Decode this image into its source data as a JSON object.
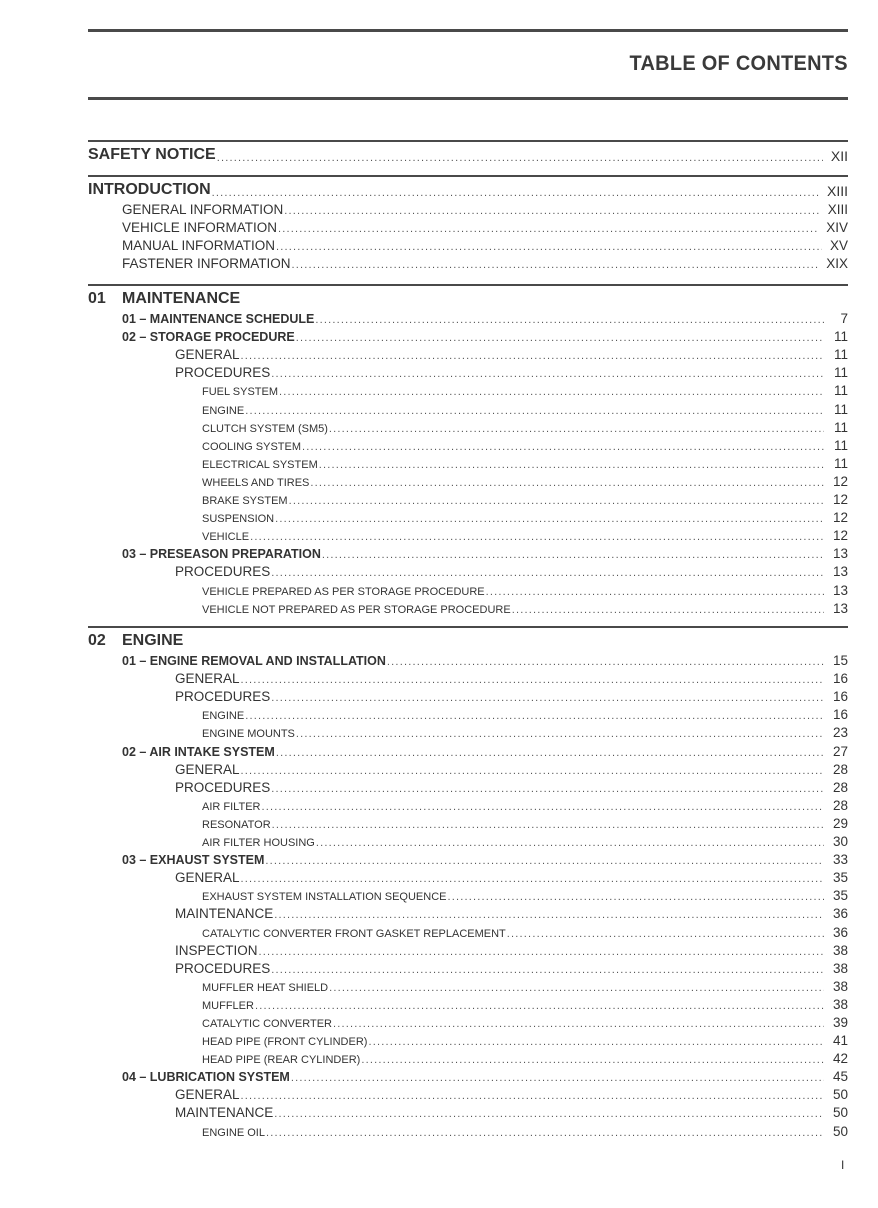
{
  "title": "TABLE OF CONTENTS",
  "page_number": "I",
  "sections": [
    {
      "num": "",
      "title": "SAFETY NOTICE",
      "page": "XII",
      "entries": []
    },
    {
      "num": "",
      "title": "INTRODUCTION",
      "page": "XIII",
      "entries": [
        {
          "level": "l1",
          "text": "GENERAL INFORMATION",
          "page": "XIII"
        },
        {
          "level": "l1",
          "text": "VEHICLE INFORMATION",
          "page": "XIV"
        },
        {
          "level": "l1",
          "text": "MANUAL INFORMATION",
          "page": "XV"
        },
        {
          "level": "l1",
          "text": "FASTENER INFORMATION",
          "page": "XIX"
        }
      ]
    },
    {
      "num": "01",
      "title": "MAINTENANCE",
      "page": "",
      "entries": [
        {
          "level": "ch",
          "text": "01 – MAINTENANCE SCHEDULE",
          "page": "7"
        },
        {
          "level": "ch",
          "text": "02 – STORAGE PROCEDURE",
          "page": "11"
        },
        {
          "level": "l2",
          "text": "GENERAL",
          "page": "11"
        },
        {
          "level": "l2",
          "text": "PROCEDURES",
          "page": "11"
        },
        {
          "level": "l3",
          "text": "FUEL SYSTEM",
          "page": "11"
        },
        {
          "level": "l3",
          "text": "ENGINE",
          "page": "11"
        },
        {
          "level": "l3",
          "text": "CLUTCH SYSTEM (SM5)",
          "page": "11"
        },
        {
          "level": "l3",
          "text": "COOLING SYSTEM",
          "page": "11"
        },
        {
          "level": "l3",
          "text": "ELECTRICAL SYSTEM",
          "page": "11"
        },
        {
          "level": "l3",
          "text": "WHEELS AND TIRES",
          "page": "12"
        },
        {
          "level": "l3",
          "text": "BRAKE SYSTEM",
          "page": "12"
        },
        {
          "level": "l3",
          "text": "SUSPENSION",
          "page": "12"
        },
        {
          "level": "l3",
          "text": "VEHICLE",
          "page": "12"
        },
        {
          "level": "ch",
          "text": "03 – PRESEASON PREPARATION",
          "page": "13"
        },
        {
          "level": "l2",
          "text": "PROCEDURES",
          "page": "13"
        },
        {
          "level": "l3",
          "text": "VEHICLE PREPARED AS PER STORAGE PROCEDURE",
          "page": "13"
        },
        {
          "level": "l3",
          "text": "VEHICLE NOT PREPARED AS PER STORAGE PROCEDURE",
          "page": "13"
        }
      ]
    },
    {
      "num": "02",
      "title": "ENGINE",
      "page": "",
      "entries": [
        {
          "level": "ch",
          "text": "01 – ENGINE REMOVAL AND INSTALLATION",
          "page": "15"
        },
        {
          "level": "l2",
          "text": "GENERAL",
          "page": "16"
        },
        {
          "level": "l2",
          "text": "PROCEDURES",
          "page": "16"
        },
        {
          "level": "l3",
          "text": "ENGINE",
          "page": "16"
        },
        {
          "level": "l3",
          "text": "ENGINE MOUNTS",
          "page": "23"
        },
        {
          "level": "ch",
          "text": "02 – AIR INTAKE SYSTEM",
          "page": "27"
        },
        {
          "level": "l2",
          "text": "GENERAL",
          "page": "28"
        },
        {
          "level": "l2",
          "text": "PROCEDURES",
          "page": "28"
        },
        {
          "level": "l3",
          "text": "AIR FILTER",
          "page": "28"
        },
        {
          "level": "l3",
          "text": "RESONATOR",
          "page": "29"
        },
        {
          "level": "l3",
          "text": "AIR FILTER HOUSING",
          "page": "30"
        },
        {
          "level": "ch",
          "text": "03 – EXHAUST SYSTEM",
          "page": "33"
        },
        {
          "level": "l2",
          "text": "GENERAL",
          "page": "35"
        },
        {
          "level": "l3",
          "text": "EXHAUST SYSTEM INSTALLATION SEQUENCE",
          "page": "35"
        },
        {
          "level": "l2",
          "text": "MAINTENANCE",
          "page": "36"
        },
        {
          "level": "l3",
          "text": "CATALYTIC CONVERTER FRONT GASKET REPLACEMENT",
          "page": "36"
        },
        {
          "level": "l2",
          "text": "INSPECTION",
          "page": "38"
        },
        {
          "level": "l2",
          "text": "PROCEDURES",
          "page": "38"
        },
        {
          "level": "l3",
          "text": "MUFFLER HEAT SHIELD",
          "page": "38"
        },
        {
          "level": "l3",
          "text": "MUFFLER",
          "page": "38"
        },
        {
          "level": "l3",
          "text": "CATALYTIC CONVERTER",
          "page": "39"
        },
        {
          "level": "l3",
          "text": "HEAD PIPE (FRONT CYLINDER)",
          "page": "41"
        },
        {
          "level": "l3",
          "text": "HEAD PIPE (REAR CYLINDER)",
          "page": "42"
        },
        {
          "level": "ch",
          "text": "04 – LUBRICATION SYSTEM",
          "page": "45"
        },
        {
          "level": "l2",
          "text": "GENERAL",
          "page": "50"
        },
        {
          "level": "l2",
          "text": "MAINTENANCE",
          "page": "50"
        },
        {
          "level": "l3",
          "text": "ENGINE OIL",
          "page": "50"
        }
      ]
    }
  ]
}
